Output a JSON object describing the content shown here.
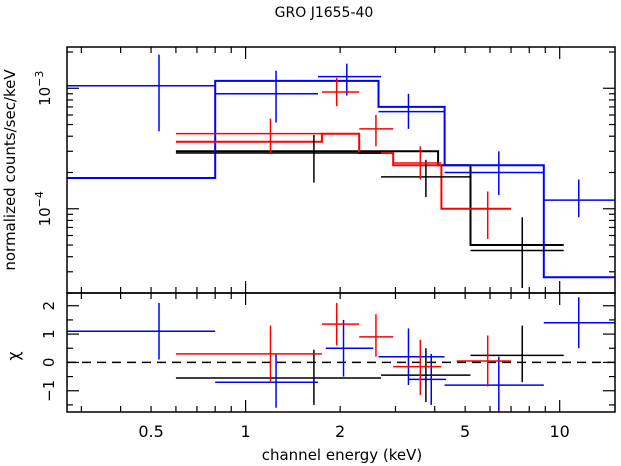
{
  "chart_data": [
    {
      "panel": "spectrum",
      "type": "scatter",
      "title": "GRO J1655-40",
      "ylabel": "normalized counts/sec/keV",
      "y_scale": "log",
      "x_scale": "log",
      "xlim": [
        0.27,
        15
      ],
      "ylim": [
        2e-05,
        0.0022
      ],
      "y_tick_labels": [
        {
          "value": 0.001,
          "base": "10",
          "exp": "−3"
        },
        {
          "value": 0.0001,
          "base": "10",
          "exp": "−4"
        }
      ],
      "series": [
        {
          "color": "#0000ff",
          "points": [
            {
              "x": 0.53,
              "xlo": 0.27,
              "xhi": 0.8,
              "y": 0.00105,
              "ylo": 0.00044,
              "yhi": 0.0019
            },
            {
              "x": 1.25,
              "xlo": 0.8,
              "xhi": 1.7,
              "y": 0.0009,
              "ylo": 0.00052,
              "yhi": 0.0014
            },
            {
              "x": 2.1,
              "xlo": 1.7,
              "xhi": 2.7,
              "y": 0.00125,
              "ylo": 0.00087,
              "yhi": 0.0016
            },
            {
              "x": 3.3,
              "xlo": 2.65,
              "xhi": 4.3,
              "y": 0.00064,
              "ylo": 0.00046,
              "yhi": 0.0009
            },
            {
              "x": 6.4,
              "xlo": 4.3,
              "xhi": 8.9,
              "y": 0.0002,
              "ylo": 0.00013,
              "yhi": 0.0003
            },
            {
              "x": 11.5,
              "xlo": 8.9,
              "xhi": 15,
              "y": 0.000118,
              "ylo": 8.5e-05,
              "yhi": 0.000175
            }
          ],
          "model": [
            {
              "x0": 0.27,
              "x1": 0.8,
              "y": 0.00018
            },
            {
              "x0": 0.8,
              "x1": 1.7,
              "y": 0.00115
            },
            {
              "x0": 1.7,
              "x1": 2.65,
              "y": 0.00115
            },
            {
              "x0": 2.65,
              "x1": 4.3,
              "y": 0.0007
            },
            {
              "x0": 4.3,
              "x1": 8.9,
              "y": 0.00023
            },
            {
              "x0": 8.9,
              "x1": 15,
              "y": 2.7e-05
            }
          ]
        },
        {
          "color": "#ff0000",
          "points": [
            {
              "x": 1.2,
              "xlo": 0.6,
              "xhi": 1.75,
              "y": 0.00042,
              "ylo": 0.00029,
              "yhi": 0.00056
            },
            {
              "x": 1.95,
              "xlo": 1.75,
              "xhi": 2.3,
              "y": 0.00093,
              "ylo": 0.00071,
              "yhi": 0.00122
            },
            {
              "x": 2.6,
              "xlo": 2.3,
              "xhi": 2.95,
              "y": 0.00046,
              "ylo": 0.00033,
              "yhi": 0.0006
            },
            {
              "x": 3.6,
              "xlo": 2.95,
              "xhi": 4.2,
              "y": 0.00024,
              "ylo": 0.000175,
              "yhi": 0.00033
            },
            {
              "x": 5.9,
              "xlo": 4.7,
              "xhi": 7.0,
              "y": 0.0001,
              "ylo": 5.6e-05,
              "yhi": 0.000139
            }
          ],
          "model": [
            {
              "x0": 0.6,
              "x1": 1.75,
              "y": 0.00036
            },
            {
              "x0": 1.75,
              "x1": 2.3,
              "y": 0.00042
            },
            {
              "x0": 2.3,
              "x1": 2.95,
              "y": 0.00029
            },
            {
              "x0": 2.95,
              "x1": 4.2,
              "y": 0.00023
            },
            {
              "x0": 4.2,
              "x1": 4.7,
              "y": 0.0001
            },
            {
              "x0": 4.7,
              "x1": 7.0,
              "y": 0.0001
            }
          ]
        },
        {
          "color": "#000000",
          "points": [
            {
              "x": 1.65,
              "xlo": 0.6,
              "xhi": 2.7,
              "y": 0.00029,
              "ylo": 0.000165,
              "yhi": 0.00041
            },
            {
              "x": 3.75,
              "xlo": 2.7,
              "xhi": 5.2,
              "y": 0.000184,
              "ylo": 0.000125,
              "yhi": 0.000255
            },
            {
              "x": 7.6,
              "xlo": 5.2,
              "xhi": 10.3,
              "y": 4.5e-05,
              "ylo": 2.2e-05,
              "yhi": 8.5e-05
            }
          ],
          "model": [
            {
              "x0": 0.6,
              "x1": 2.7,
              "y": 0.0003
            },
            {
              "x0": 2.7,
              "x1": 4.1,
              "y": 0.0003
            },
            {
              "x0": 4.1,
              "x1": 5.2,
              "y": 0.00023
            },
            {
              "x0": 5.2,
              "x1": 10.3,
              "y": 5e-05
            }
          ]
        }
      ]
    },
    {
      "panel": "residuals",
      "type": "scatter",
      "ylabel": "χ",
      "xlabel": "channel energy (keV)",
      "x_scale": "log",
      "xlim": [
        0.27,
        15
      ],
      "ylim": [
        -1.75,
        2.45
      ],
      "y_ticks": [
        -1,
        0,
        1,
        2
      ],
      "y_tick_labels": [
        "−1",
        "0",
        "1",
        "2"
      ],
      "x_ticks": [
        0.5,
        1,
        2,
        5,
        10
      ],
      "x_tick_labels": [
        "0.5",
        "1",
        "2",
        "5",
        "10"
      ],
      "zero_line": 0,
      "series": [
        {
          "color": "#0000ff",
          "points": [
            {
              "x": 0.53,
              "xlo": 0.27,
              "xhi": 0.8,
              "y": 1.1,
              "ylo": 0.1,
              "yhi": 2.1
            },
            {
              "x": 1.25,
              "xlo": 0.8,
              "xhi": 1.7,
              "y": -0.7,
              "ylo": -1.6,
              "yhi": 0.3
            },
            {
              "x": 2.05,
              "xlo": 1.8,
              "xhi": 2.55,
              "y": 0.5,
              "ylo": -0.5,
              "yhi": 1.5
            },
            {
              "x": 3.3,
              "xlo": 2.65,
              "xhi": 4.3,
              "y": 0.2,
              "ylo": -0.8,
              "yhi": 1.2
            },
            {
              "x": 3.9,
              "xlo": 3.3,
              "xhi": 4.35,
              "y": -0.6,
              "ylo": -1.5,
              "yhi": 0.3
            },
            {
              "x": 6.4,
              "xlo": 4.3,
              "xhi": 8.9,
              "y": -0.8,
              "ylo": -1.75,
              "yhi": 0.2
            },
            {
              "x": 11.5,
              "xlo": 8.9,
              "xhi": 15,
              "y": 1.4,
              "ylo": 0.5,
              "yhi": 2.3
            }
          ]
        },
        {
          "color": "#ff0000",
          "points": [
            {
              "x": 1.2,
              "xlo": 0.6,
              "xhi": 1.75,
              "y": 0.3,
              "ylo": -0.7,
              "yhi": 1.3
            },
            {
              "x": 1.95,
              "xlo": 1.75,
              "xhi": 2.3,
              "y": 1.35,
              "ylo": 0.6,
              "yhi": 2.1
            },
            {
              "x": 2.6,
              "xlo": 2.3,
              "xhi": 2.95,
              "y": 0.9,
              "ylo": 0.2,
              "yhi": 1.7
            },
            {
              "x": 3.6,
              "xlo": 2.95,
              "xhi": 4.2,
              "y": -0.15,
              "ylo": -1.15,
              "yhi": 0.8
            },
            {
              "x": 5.9,
              "xlo": 4.7,
              "xhi": 7.0,
              "y": 0.05,
              "ylo": -0.85,
              "yhi": 0.95
            }
          ]
        },
        {
          "color": "#000000",
          "points": [
            {
              "x": 1.65,
              "xlo": 0.6,
              "xhi": 2.7,
              "y": -0.55,
              "ylo": -1.5,
              "yhi": 0.45
            },
            {
              "x": 3.75,
              "xlo": 2.7,
              "xhi": 5.2,
              "y": -0.45,
              "ylo": -1.4,
              "yhi": 0.5
            },
            {
              "x": 7.6,
              "xlo": 5.2,
              "xhi": 10.3,
              "y": 0.25,
              "ylo": -0.7,
              "yhi": 1.3
            }
          ]
        }
      ]
    }
  ]
}
